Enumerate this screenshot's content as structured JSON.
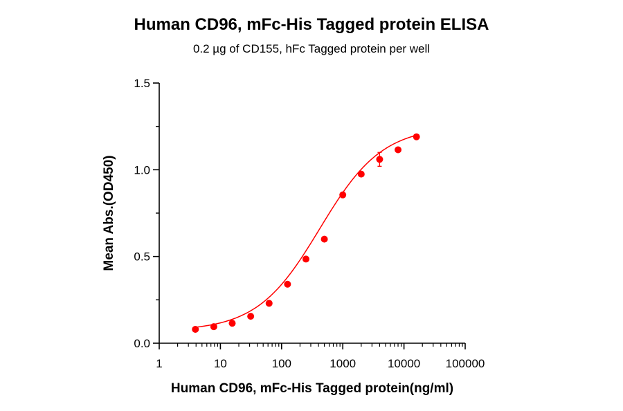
{
  "chart_data": {
    "type": "scatter",
    "title": "Human CD96, mFc-His Tagged protein ELISA",
    "subtitle": "0.2 µg of CD155, hFc Tagged protein per well",
    "xlabel": "Human CD96, mFc-His Tagged protein(ng/ml)",
    "ylabel": "Mean Abs.(OD450)",
    "x_scale": "log",
    "xlim": [
      1,
      100000
    ],
    "ylim": [
      0,
      1.5
    ],
    "x_ticks": [
      1,
      10,
      100,
      1000,
      10000,
      100000
    ],
    "x_tick_labels": [
      "1",
      "10",
      "100",
      "1000",
      "10000",
      "100000"
    ],
    "y_ticks": [
      0.0,
      0.5,
      1.0,
      1.5
    ],
    "y_tick_labels": [
      "0.0",
      "0.5",
      "1.0",
      "1.5"
    ],
    "grid": false,
    "series": [
      {
        "color": "#ff0000",
        "fit": "4PL sigmoid",
        "x": [
          3.9,
          7.8,
          15.6,
          31.25,
          62.5,
          125,
          250,
          500,
          1000,
          2000,
          4000,
          8000,
          16000
        ],
        "y": [
          0.08,
          0.095,
          0.115,
          0.155,
          0.23,
          0.34,
          0.485,
          0.6,
          0.855,
          0.975,
          1.06,
          1.115,
          1.19
        ],
        "error": [
          0.005,
          0.005,
          0.005,
          0.005,
          0.006,
          0.006,
          0.006,
          0.008,
          0.01,
          0.01,
          0.04,
          0.01,
          0.008
        ]
      }
    ]
  }
}
